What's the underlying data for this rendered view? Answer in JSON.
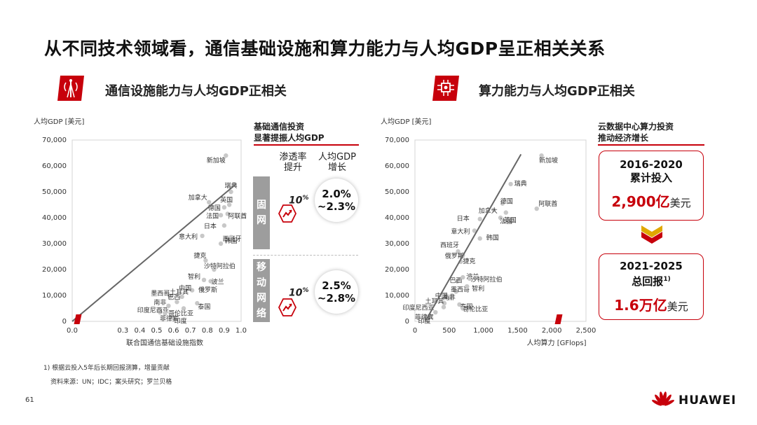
{
  "title": "从不同技术领域看，通信基础设施和算力能力与人均GDP呈正相关关系",
  "left_section": {
    "title": "通信设施能力与人均GDP正相关",
    "icon": "telecom-tower-icon"
  },
  "right_section": {
    "title": "算力能力与人均GDP正相关",
    "icon": "compute-chip-icon"
  },
  "left_side": {
    "title_line1": "基础通信投资",
    "title_line2": "显著提振人均GDP",
    "col1_line1": "渗透率",
    "col1_line2": "提升",
    "col2_line1": "人均GDP",
    "col2_line2": "增长",
    "rows": [
      {
        "tab_chars": [
          "固",
          "网"
        ],
        "pct": "10",
        "pct_unit": "%",
        "growth_line1": "2.0%",
        "growth_line2": "~2.3%"
      },
      {
        "tab_chars": [
          "移",
          "动",
          "网",
          "络"
        ],
        "pct": "10",
        "pct_unit": "%",
        "growth_line1": "2.5%",
        "growth_line2": "~2.8%"
      }
    ]
  },
  "right_side": {
    "title_line1": "云数据中心算力投资",
    "title_line2": "推动经济增长",
    "card1": {
      "label_line1": "2016-2020",
      "label_line2": "累计投入",
      "value": "2,900亿",
      "unit": "美元"
    },
    "card2": {
      "label_line1": "2021-2025",
      "label_line2": "总回报",
      "label_sup": "1)",
      "value": "1.6万亿",
      "unit": "美元"
    }
  },
  "footnote1": "1) 根据云投入5年后长期回报测算，增量贡献",
  "footnote2": "资料来源：UN；IDC；案头研究；罗兰贝格",
  "page_number": "61",
  "brand": "HUAWEI",
  "colors": {
    "accent": "#c7000b",
    "point": "#c8c8c8",
    "trend": "#666666",
    "tab": "#9d9d9d"
  },
  "chart_data": [
    {
      "type": "scatter",
      "ylabel": "人均GDP [美元]",
      "xlabel": "联合国通信基础设施指数",
      "xlim": [
        0.0,
        1.0
      ],
      "ylim": [
        0,
        70000
      ],
      "xticks": [
        0.0,
        0.1,
        0.2,
        0.3,
        0.4,
        0.5,
        0.6,
        0.7,
        0.8,
        0.9,
        1.0
      ],
      "xtick_labels": [
        "0.0",
        "",
        "",
        "0.3",
        "0.4",
        "0.5",
        "0.6",
        "0.7",
        "0.8",
        "0.9",
        "1.0"
      ],
      "yticks": [
        0,
        10000,
        20000,
        30000,
        40000,
        50000,
        60000,
        70000
      ],
      "ytick_labels": [
        "0",
        "10,000",
        "20,000",
        "30,000",
        "40,000",
        "50,000",
        "60,000",
        "70,000"
      ],
      "trend": [
        [
          0.0,
          0
        ],
        [
          0.97,
          53000
        ]
      ],
      "points": [
        {
          "x": 0.6,
          "y": 1500,
          "label": "印度"
        },
        {
          "x": 0.52,
          "y": 3500,
          "label": "印度尼西亚"
        },
        {
          "x": 0.55,
          "y": 3000,
          "label": "菲律宾"
        },
        {
          "x": 0.57,
          "y": 6000,
          "label": "南非"
        },
        {
          "x": 0.58,
          "y": 9500,
          "label": "墨西哥"
        },
        {
          "x": 0.62,
          "y": 7500,
          "label": "巴西"
        },
        {
          "x": 0.66,
          "y": 5000,
          "label": "哥伦比亚"
        },
        {
          "x": 0.65,
          "y": 9500,
          "label": "土耳其"
        },
        {
          "x": 0.71,
          "y": 12000,
          "label": "中国"
        },
        {
          "x": 0.74,
          "y": 7000,
          "label": "泰国"
        },
        {
          "x": 0.77,
          "y": 12500,
          "label": "俄罗斯"
        },
        {
          "x": 0.78,
          "y": 16000,
          "label": "智利"
        },
        {
          "x": 0.82,
          "y": 15500,
          "label": "波兰"
        },
        {
          "x": 0.84,
          "y": 20000,
          "label": "沙特阿拉伯"
        },
        {
          "x": 0.79,
          "y": 23500,
          "label": "捷克"
        },
        {
          "x": 0.77,
          "y": 33000,
          "label": "意大利"
        },
        {
          "x": 0.88,
          "y": 30000,
          "label": "西班牙"
        },
        {
          "x": 0.9,
          "y": 37000,
          "label": "日本"
        },
        {
          "x": 0.94,
          "y": 32500,
          "label": "韩国"
        },
        {
          "x": 0.88,
          "y": 41000,
          "label": "法国"
        },
        {
          "x": 0.92,
          "y": 41500,
          "label": "阿联酋"
        },
        {
          "x": 0.81,
          "y": 46000,
          "label": "加拿大"
        },
        {
          "x": 0.9,
          "y": 44000,
          "label": "德国"
        },
        {
          "x": 0.93,
          "y": 45000,
          "label": "英国"
        },
        {
          "x": 0.94,
          "y": 50000,
          "label": "瑞典"
        },
        {
          "x": 0.91,
          "y": 64000,
          "label": "新加坡"
        }
      ]
    },
    {
      "type": "scatter",
      "ylabel": "人均GDP [美元]",
      "xlabel": "人均算力 [GFlops]",
      "xlim": [
        0,
        2500
      ],
      "ylim": [
        0,
        70000
      ],
      "xticks": [
        0,
        500,
        1000,
        1500,
        2000,
        2500
      ],
      "xtick_labels": [
        "0",
        "500",
        "1,000",
        "1,500",
        "2,000",
        "2,500"
      ],
      "yticks": [
        0,
        10000,
        20000,
        30000,
        40000,
        50000,
        60000,
        70000
      ],
      "ytick_labels": [
        "0",
        "10,000",
        "20,000",
        "30,000",
        "40,000",
        "50,000",
        "60,000",
        "70,000"
      ],
      "trend": [
        [
          150,
          0
        ],
        [
          1550,
          64500
        ]
      ],
      "points": [
        {
          "x": 220,
          "y": 2000,
          "label": "印度"
        },
        {
          "x": 300,
          "y": 3500,
          "label": "菲律宾"
        },
        {
          "x": 420,
          "y": 5500,
          "label": "印度尼西亚"
        },
        {
          "x": 430,
          "y": 7000,
          "label": "土耳其"
        },
        {
          "x": 510,
          "y": 9000,
          "label": "中国"
        },
        {
          "x": 540,
          "y": 10000,
          "label": "南非"
        },
        {
          "x": 600,
          "y": 11500,
          "label": "墨西哥"
        },
        {
          "x": 650,
          "y": 6500,
          "label": "泰国"
        },
        {
          "x": 700,
          "y": 5000,
          "label": "哥伦比亚"
        },
        {
          "x": 620,
          "y": 15500,
          "label": "巴西"
        },
        {
          "x": 700,
          "y": 17000,
          "label": "波兰"
        },
        {
          "x": 800,
          "y": 16500,
          "label": "沙特阿拉伯"
        },
        {
          "x": 760,
          "y": 13500,
          "label": "智利"
        },
        {
          "x": 670,
          "y": 23000,
          "label": "捷克"
        },
        {
          "x": 630,
          "y": 27000,
          "label": "西班牙"
        },
        {
          "x": 700,
          "y": 25500,
          "label": "俄罗斯"
        },
        {
          "x": 950,
          "y": 32000,
          "label": "韩国"
        },
        {
          "x": 870,
          "y": 35000,
          "label": "意大利"
        },
        {
          "x": 950,
          "y": 39500,
          "label": "日本"
        },
        {
          "x": 1150,
          "y": 43000,
          "label": "加拿大"
        },
        {
          "x": 1250,
          "y": 40000,
          "label": "法国"
        },
        {
          "x": 1280,
          "y": 45500,
          "label": "德国"
        },
        {
          "x": 1330,
          "y": 42000,
          "label": "英国"
        },
        {
          "x": 1400,
          "y": 53000,
          "label": "瑞典"
        },
        {
          "x": 1780,
          "y": 43500,
          "label": "阿联酋"
        },
        {
          "x": 1850,
          "y": 64000,
          "label": "新加坡"
        }
      ]
    }
  ]
}
